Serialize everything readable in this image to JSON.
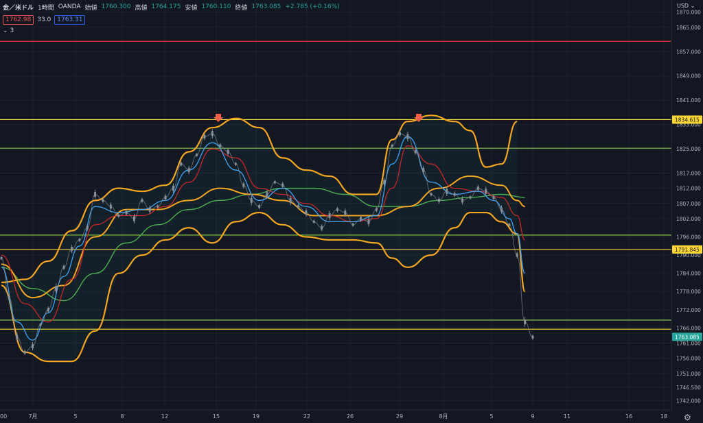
{
  "header": {
    "symbol": "金／米ドル",
    "interval": "1時間",
    "broker": "OANDA",
    "open_label": "始値",
    "open": "1760.300",
    "high_label": "高値",
    "high": "1764.175",
    "low_label": "安値",
    "low": "1760.110",
    "close_label": "終値",
    "close": "1763.085",
    "change": "+2.785 (+0.16%)",
    "bid": "1762.98",
    "spread": "33.0",
    "ask": "1763.31",
    "indicators_count": "3",
    "currency": "USD"
  },
  "colors": {
    "background": "#131722",
    "bollinger": "#f5a623",
    "ma_blue": "#42a5f5",
    "ma_red": "#c62828",
    "ma_green": "#4caf50",
    "price_up": "#8a9099",
    "resistance_red": "#e53935",
    "yellow_line": "#fdd835",
    "green_line": "#8bc34a",
    "arrow": "#f0614a",
    "last_price_bg": "#26a69a"
  },
  "chart_data": {
    "type": "line",
    "y_axis_ticks": [
      "1870.000",
      "1865.000",
      "1857.000",
      "1849.000",
      "1841.000",
      "1833.000",
      "1825.000",
      "1817.000",
      "1812.000",
      "1807.000",
      "1802.000",
      "1796.000",
      "1790.000",
      "1784.000",
      "1778.000",
      "1772.000",
      "1766.000",
      "1761.000",
      "1756.000",
      "1751.000",
      "1746.500",
      "1742.000"
    ],
    "x_axis_ticks": [
      "7月",
      "5",
      "8",
      "12",
      "15",
      "19",
      "22",
      "26",
      "29",
      "8月",
      "5",
      "9",
      "11",
      "16",
      "18"
    ],
    "x_axis_partial_label": "00",
    "horizontal_levels": [
      {
        "value": 1860.4,
        "color": "red"
      },
      {
        "value": 1834.615,
        "color": "yellow",
        "label": "1834.615"
      },
      {
        "value": 1825.2,
        "color": "green"
      },
      {
        "value": 1796.6,
        "color": "green"
      },
      {
        "value": 1791.845,
        "color": "yellow",
        "label": "1791.845"
      },
      {
        "value": 1768.6,
        "color": "green"
      },
      {
        "value": 1765.6,
        "color": "yellow"
      }
    ],
    "last_price": "1763.085",
    "ylim": [
      1739,
      1874
    ],
    "arrows_at_x": [
      "15",
      "31"
    ],
    "price_path": [
      [
        0,
        1789
      ],
      [
        1,
        1776
      ],
      [
        2,
        1763
      ],
      [
        3,
        1758
      ],
      [
        4,
        1760
      ],
      [
        5,
        1767
      ],
      [
        6,
        1772
      ],
      [
        7,
        1779
      ],
      [
        8,
        1786
      ],
      [
        9,
        1792
      ],
      [
        10,
        1795
      ],
      [
        11,
        1799
      ],
      [
        12,
        1810
      ],
      [
        13,
        1808
      ],
      [
        14,
        1806
      ],
      [
        15,
        1803
      ],
      [
        16,
        1804
      ],
      [
        17,
        1802
      ],
      [
        18,
        1808
      ],
      [
        19,
        1805
      ],
      [
        20,
        1806
      ],
      [
        21,
        1809
      ],
      [
        22,
        1812
      ],
      [
        23,
        1820
      ],
      [
        24,
        1818
      ],
      [
        25,
        1823
      ],
      [
        26,
        1829
      ],
      [
        27,
        1830
      ],
      [
        28,
        1826
      ],
      [
        29,
        1824
      ],
      [
        30,
        1820
      ],
      [
        31,
        1813
      ],
      [
        32,
        1808
      ],
      [
        33,
        1806
      ],
      [
        34,
        1810
      ],
      [
        35,
        1814
      ],
      [
        36,
        1813
      ],
      [
        37,
        1808
      ],
      [
        38,
        1806
      ],
      [
        39,
        1804
      ],
      [
        40,
        1801
      ],
      [
        41,
        1799
      ],
      [
        42,
        1803
      ],
      [
        43,
        1805
      ],
      [
        44,
        1804
      ],
      [
        45,
        1800
      ],
      [
        46,
        1802
      ],
      [
        47,
        1801
      ],
      [
        48,
        1805
      ],
      [
        49,
        1814
      ],
      [
        50,
        1826
      ],
      [
        51,
        1830
      ],
      [
        52,
        1829
      ],
      [
        53,
        1824
      ],
      [
        54,
        1818
      ],
      [
        55,
        1810
      ],
      [
        56,
        1808
      ],
      [
        57,
        1811
      ],
      [
        58,
        1810
      ],
      [
        59,
        1808
      ],
      [
        60,
        1809
      ],
      [
        61,
        1812
      ],
      [
        62,
        1811
      ],
      [
        63,
        1809
      ],
      [
        64,
        1805
      ],
      [
        65,
        1800
      ],
      [
        66,
        1790
      ],
      [
        67,
        1768
      ],
      [
        68,
        1763
      ]
    ],
    "bb_upper": [
      [
        0,
        1781
      ],
      [
        3,
        1782
      ],
      [
        6,
        1788
      ],
      [
        9,
        1798
      ],
      [
        12,
        1808
      ],
      [
        15,
        1812
      ],
      [
        18,
        1811
      ],
      [
        21,
        1813
      ],
      [
        24,
        1824
      ],
      [
        27,
        1832
      ],
      [
        30,
        1835
      ],
      [
        33,
        1832
      ],
      [
        36,
        1822
      ],
      [
        39,
        1818
      ],
      [
        42,
        1816
      ],
      [
        45,
        1810
      ],
      [
        48,
        1810
      ],
      [
        50,
        1828
      ],
      [
        52,
        1834
      ],
      [
        55,
        1836
      ],
      [
        58,
        1834
      ],
      [
        60,
        1831
      ],
      [
        62,
        1819
      ],
      [
        64,
        1820
      ],
      [
        66,
        1834
      ]
    ],
    "bb_lower": [
      [
        0,
        1780
      ],
      [
        3,
        1758
      ],
      [
        6,
        1755
      ],
      [
        9,
        1755
      ],
      [
        12,
        1765
      ],
      [
        15,
        1784
      ],
      [
        18,
        1790
      ],
      [
        21,
        1795
      ],
      [
        24,
        1799
      ],
      [
        27,
        1794
      ],
      [
        30,
        1801
      ],
      [
        33,
        1804
      ],
      [
        36,
        1800
      ],
      [
        39,
        1796
      ],
      [
        42,
        1795
      ],
      [
        45,
        1795
      ],
      [
        48,
        1794
      ],
      [
        50,
        1789
      ],
      [
        52,
        1786
      ],
      [
        55,
        1790
      ],
      [
        58,
        1799
      ],
      [
        60,
        1804
      ],
      [
        62,
        1804
      ],
      [
        64,
        1801
      ],
      [
        66,
        1797
      ]
    ],
    "ma_blue_path": [
      [
        0,
        1786
      ],
      [
        2,
        1768
      ],
      [
        4,
        1762
      ],
      [
        6,
        1771
      ],
      [
        8,
        1783
      ],
      [
        10,
        1793
      ],
      [
        12,
        1806
      ],
      [
        15,
        1804
      ],
      [
        18,
        1805
      ],
      [
        21,
        1808
      ],
      [
        24,
        1818
      ],
      [
        27,
        1827
      ],
      [
        30,
        1818
      ],
      [
        33,
        1808
      ],
      [
        36,
        1812
      ],
      [
        39,
        1806
      ],
      [
        42,
        1801
      ],
      [
        45,
        1801
      ],
      [
        48,
        1803
      ],
      [
        50,
        1820
      ],
      [
        52,
        1829
      ],
      [
        55,
        1814
      ],
      [
        58,
        1810
      ],
      [
        61,
        1811
      ],
      [
        63,
        1808
      ],
      [
        65,
        1802
      ],
      [
        66,
        1797
      ],
      [
        67,
        1784
      ]
    ],
    "ma_red_path": [
      [
        0,
        1790
      ],
      [
        3,
        1774
      ],
      [
        6,
        1768
      ],
      [
        9,
        1782
      ],
      [
        12,
        1800
      ],
      [
        15,
        1803
      ],
      [
        18,
        1803
      ],
      [
        21,
        1806
      ],
      [
        24,
        1814
      ],
      [
        27,
        1825
      ],
      [
        30,
        1822
      ],
      [
        33,
        1812
      ],
      [
        36,
        1810
      ],
      [
        39,
        1807
      ],
      [
        42,
        1803
      ],
      [
        45,
        1801
      ],
      [
        48,
        1802
      ],
      [
        50,
        1812
      ],
      [
        52,
        1826
      ],
      [
        55,
        1820
      ],
      [
        58,
        1812
      ],
      [
        61,
        1811
      ],
      [
        64,
        1809
      ],
      [
        66,
        1803
      ],
      [
        67,
        1795
      ]
    ],
    "ma_green_path": [
      [
        0,
        1786
      ],
      [
        4,
        1779
      ],
      [
        8,
        1775
      ],
      [
        12,
        1784
      ],
      [
        16,
        1794
      ],
      [
        20,
        1800
      ],
      [
        24,
        1805
      ],
      [
        28,
        1808
      ],
      [
        32,
        1810
      ],
      [
        36,
        1812
      ],
      [
        40,
        1812
      ],
      [
        44,
        1810
      ],
      [
        48,
        1806
      ],
      [
        52,
        1806
      ],
      [
        56,
        1808
      ],
      [
        60,
        1809
      ],
      [
        64,
        1810
      ],
      [
        67,
        1809
      ]
    ],
    "ma_orange_path": [
      [
        0,
        1787
      ],
      [
        4,
        1776
      ],
      [
        8,
        1780
      ],
      [
        12,
        1796
      ],
      [
        16,
        1805
      ],
      [
        20,
        1805
      ],
      [
        24,
        1808
      ],
      [
        28,
        1812
      ],
      [
        32,
        1810
      ],
      [
        36,
        1808
      ],
      [
        40,
        1803
      ],
      [
        44,
        1803
      ],
      [
        48,
        1803
      ],
      [
        52,
        1806
      ],
      [
        56,
        1812
      ],
      [
        60,
        1816
      ],
      [
        64,
        1813
      ],
      [
        66,
        1808
      ],
      [
        67,
        1806
      ]
    ],
    "bb_tail_upper": [
      [
        64,
        1820
      ],
      [
        66,
        1834
      ]
    ],
    "bb_tail_lower_end": [
      [
        66,
        1797
      ],
      [
        67,
        1778
      ]
    ]
  }
}
